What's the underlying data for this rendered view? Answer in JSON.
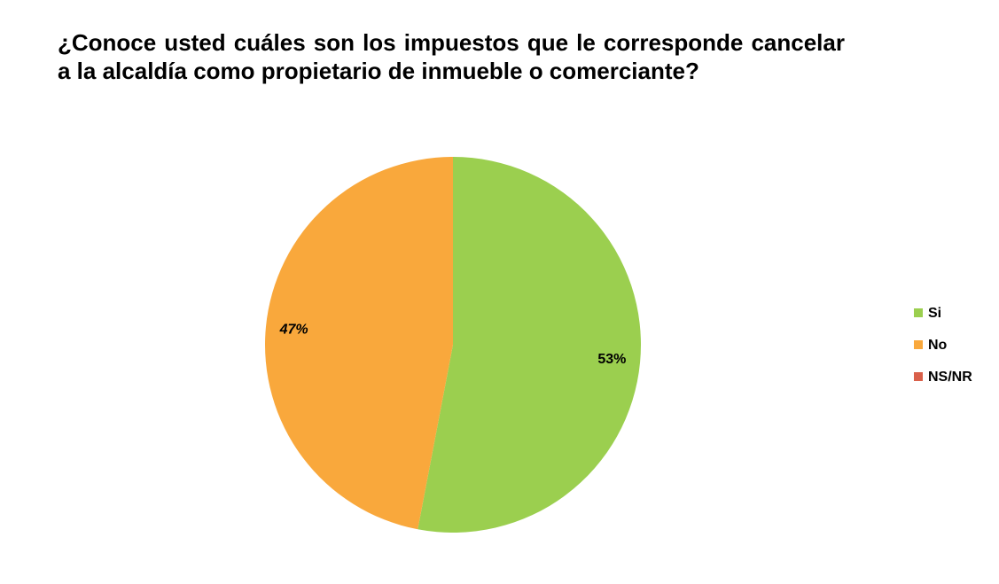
{
  "chart_data": {
    "type": "pie",
    "title": "¿Conoce usted cuáles son los impuestos que le corresponde cancelar a la alcaldía como propietario de inmueble o comerciante?",
    "categories": [
      "Si",
      "No",
      "NS/NR"
    ],
    "values": [
      53,
      47,
      0
    ],
    "value_labels": [
      "53%",
      "47%",
      null
    ],
    "colors": [
      "#9bcf4f",
      "#f9a83c",
      "#d9604a"
    ],
    "legend": "right"
  }
}
